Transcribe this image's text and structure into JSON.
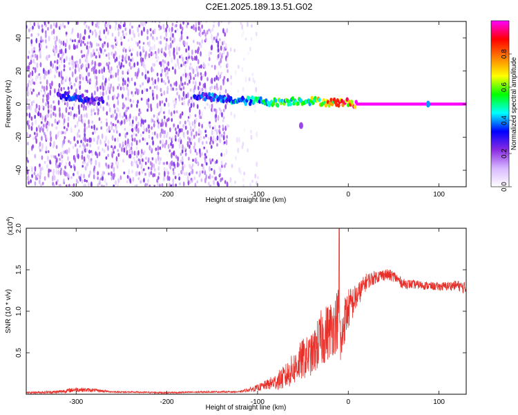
{
  "title": "C2E1.2025.189.13.51.G02",
  "chart_data": [
    {
      "type": "heatmap",
      "xlabel": "Height of straight line (km)",
      "ylabel": "Frequency (Hz)",
      "xlim": [
        -355,
        130
      ],
      "ylim": [
        -50,
        50
      ],
      "xticks": [
        -300,
        -200,
        -100,
        0,
        100
      ],
      "xtick_labels": [
        "-300",
        "-200",
        "-100",
        "0",
        "100"
      ],
      "yticks": [
        -40,
        -20,
        0,
        20,
        40
      ],
      "ytick_labels": [
        "-40",
        "-20",
        "0",
        "20",
        "40"
      ],
      "colorbar": {
        "label": "Normalized spectral amplitude",
        "range": [
          0,
          1
        ],
        "ticks": [
          0.0,
          0.2,
          0.4,
          0.6,
          0.8
        ],
        "tick_labels": [
          "0.0",
          "0.2",
          "0.4",
          "0.6",
          "0.8"
        ],
        "colors": [
          "#ffffff",
          "#d8b8ff",
          "#8a2be2",
          "#0000ff",
          "#00ffff",
          "#00ff00",
          "#ffff00",
          "#ff8000",
          "#ff0000",
          "#ff00ff"
        ]
      },
      "features": [
        {
          "kind": "noise_band",
          "x_range": [
            -355,
            -135
          ],
          "freq_range": [
            -50,
            50
          ],
          "amplitude": 0.15
        },
        {
          "kind": "sparse_noise",
          "x_range": [
            -135,
            -100
          ],
          "freq_range": [
            -50,
            50
          ],
          "amplitude": 0.05
        },
        {
          "kind": "signal_trace",
          "points": [
            [
              -320,
              5
            ],
            [
              -300,
              4
            ],
            [
              -280,
              2
            ],
            [
              -165,
              5
            ],
            [
              -140,
              3
            ],
            [
              -120,
              2
            ],
            [
              -100,
              2
            ],
            [
              -80,
              1
            ],
            [
              -60,
              2
            ],
            [
              -40,
              2
            ],
            [
              -20,
              1
            ],
            [
              0,
              1
            ],
            [
              10,
              0
            ],
            [
              130,
              0
            ]
          ],
          "amplitude": [
            0.3,
            0.3,
            0.25,
            0.3,
            0.35,
            0.4,
            0.45,
            0.5,
            0.5,
            0.55,
            0.7,
            0.8,
            1.0,
            1.0
          ]
        },
        {
          "kind": "blob",
          "x": -52,
          "freq": -13,
          "amplitude": 0.2
        },
        {
          "kind": "blob",
          "x": 88,
          "freq": 0,
          "amplitude": 0.4
        }
      ]
    },
    {
      "type": "line",
      "xlabel": "Height of straight line (km)",
      "ylabel": "SNR (10 * v/v)",
      "y_multiplier": "(x10",
      "y_multiplier_exp": "4",
      "y_multiplier_close": ")",
      "xlim": [
        -355,
        130
      ],
      "ylim": [
        0,
        2.0
      ],
      "xticks": [
        -300,
        -200,
        -100,
        0,
        100
      ],
      "xtick_labels": [
        "-300",
        "-200",
        "-100",
        "0",
        "100"
      ],
      "yticks": [
        0.5,
        1.0,
        1.5,
        2.0
      ],
      "ytick_labels": [
        "0.5",
        "1.0",
        "1.5",
        "2.0"
      ],
      "color": "#e8302a",
      "envelope": {
        "x": [
          -355,
          -320,
          -300,
          -280,
          -260,
          -200,
          -150,
          -120,
          -100,
          -90,
          -80,
          -70,
          -60,
          -50,
          -40,
          -30,
          -20,
          -15,
          -10,
          -8,
          -5,
          0,
          10,
          20,
          30,
          40,
          50,
          60,
          80,
          100,
          120,
          130
        ],
        "y": [
          0.02,
          0.03,
          0.06,
          0.05,
          0.03,
          0.02,
          0.03,
          0.03,
          0.08,
          0.12,
          0.16,
          0.22,
          0.33,
          0.45,
          0.5,
          0.7,
          0.82,
          0.86,
          1.0,
          0.55,
          0.9,
          1.05,
          1.2,
          1.37,
          1.42,
          1.45,
          1.43,
          1.34,
          1.32,
          1.3,
          1.32,
          1.28
        ],
        "noise": [
          0.01,
          0.02,
          0.03,
          0.02,
          0.01,
          0.01,
          0.01,
          0.01,
          0.04,
          0.06,
          0.1,
          0.15,
          0.2,
          0.25,
          0.25,
          0.35,
          0.35,
          0.35,
          0.4,
          0.3,
          0.3,
          0.25,
          0.15,
          0.1,
          0.08,
          0.07,
          0.07,
          0.06,
          0.05,
          0.05,
          0.06,
          0.08
        ]
      },
      "spikes": [
        {
          "x": -10,
          "y": 2.05
        }
      ]
    }
  ]
}
